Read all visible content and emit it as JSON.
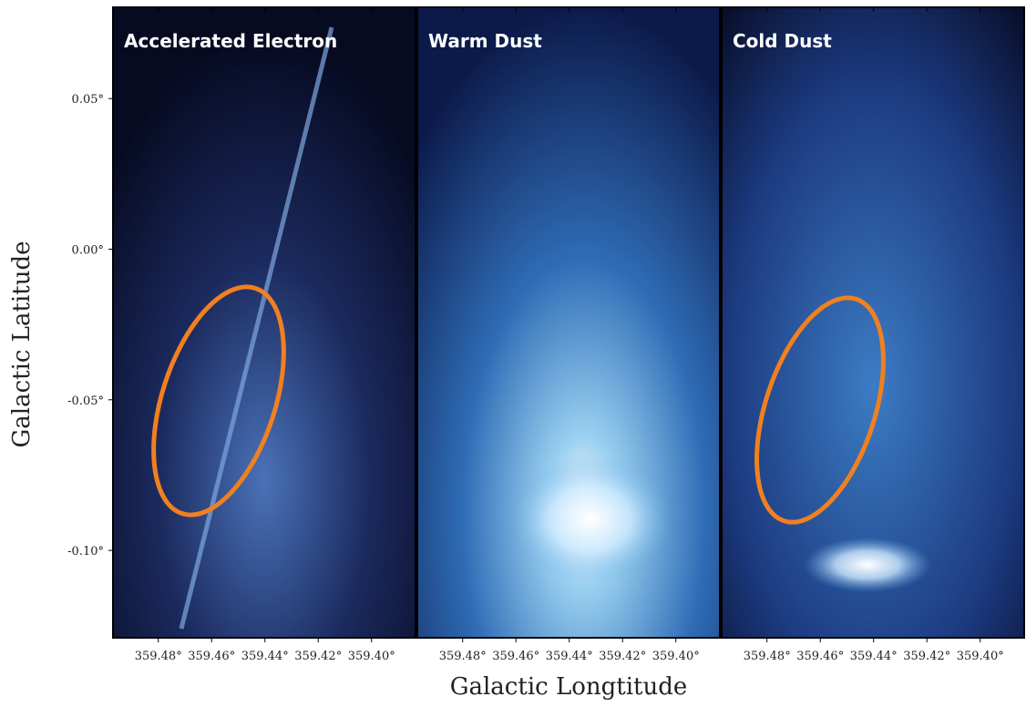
{
  "chart_data": [
    {
      "type": "image",
      "title": "Accelerated Electron",
      "ylabel": "Galactic Latitude",
      "xlim": [
        359.497,
        359.3835
      ],
      "ylim": [
        0.0803,
        -0.129
      ],
      "xticks": [
        {
          "value": 359.48,
          "label": "359.48°"
        },
        {
          "value": 359.46,
          "label": "359.46°"
        },
        {
          "value": 359.44,
          "label": "359.44°"
        },
        {
          "value": 359.42,
          "label": "359.42°"
        },
        {
          "value": 359.4,
          "label": "359.40°"
        }
      ],
      "yticks": [
        {
          "value": 0.05,
          "label": "0.05°"
        },
        {
          "value": 0.0,
          "label": "0.00°"
        },
        {
          "value": -0.05,
          "label": "-0.05°"
        },
        {
          "value": -0.1,
          "label": "-0.10°"
        }
      ]
    },
    {
      "type": "image",
      "title": "Warm Dust",
      "xlabel": "Galactic Longtitude",
      "xlim": [
        359.497,
        359.3835
      ],
      "ylim": [
        0.0803,
        -0.129
      ],
      "xticks": [
        {
          "value": 359.48,
          "label": "359.48°"
        },
        {
          "value": 359.46,
          "label": "359.46°"
        },
        {
          "value": 359.44,
          "label": "359.44°"
        },
        {
          "value": 359.42,
          "label": "359.42°"
        },
        {
          "value": 359.4,
          "label": "359.40°"
        }
      ]
    },
    {
      "type": "image",
      "title": "Cold Dust",
      "xlim": [
        359.497,
        359.3835
      ],
      "ylim": [
        0.0803,
        -0.129
      ],
      "xticks": [
        {
          "value": 359.48,
          "label": "359.48°"
        },
        {
          "value": 359.46,
          "label": "359.46°"
        },
        {
          "value": 359.44,
          "label": "359.44°"
        },
        {
          "value": 359.42,
          "label": "359.42°"
        },
        {
          "value": 359.4,
          "label": "359.40°"
        }
      ]
    }
  ]
}
